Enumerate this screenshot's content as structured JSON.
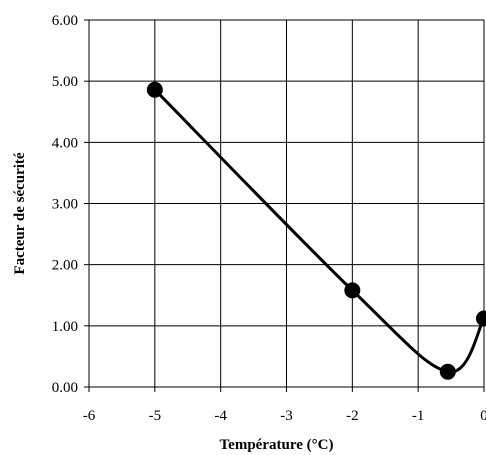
{
  "chart_data": {
    "type": "line",
    "xlabel": "Température (°C)",
    "ylabel": "Facteur de sécurité",
    "xlim": [
      -6,
      0
    ],
    "ylim": [
      0,
      6
    ],
    "x_ticks": [
      -6,
      -5,
      -4,
      -3,
      -2,
      -1,
      0
    ],
    "x_tick_labels": [
      "-6",
      "-5",
      "-4",
      "-3",
      "-2",
      "-1",
      "0"
    ],
    "y_ticks": [
      0,
      1,
      2,
      3,
      4,
      5,
      6
    ],
    "y_tick_labels": [
      "0.00",
      "1.00",
      "2.00",
      "3.00",
      "4.00",
      "5.00",
      "6.00"
    ],
    "grid": true,
    "smooth": true,
    "marker": "circle",
    "series": [
      {
        "x": [
          -5,
          -2,
          -0.55,
          0
        ],
        "y": [
          4.86,
          1.58,
          0.25,
          1.12
        ],
        "color": "#000000"
      }
    ]
  }
}
